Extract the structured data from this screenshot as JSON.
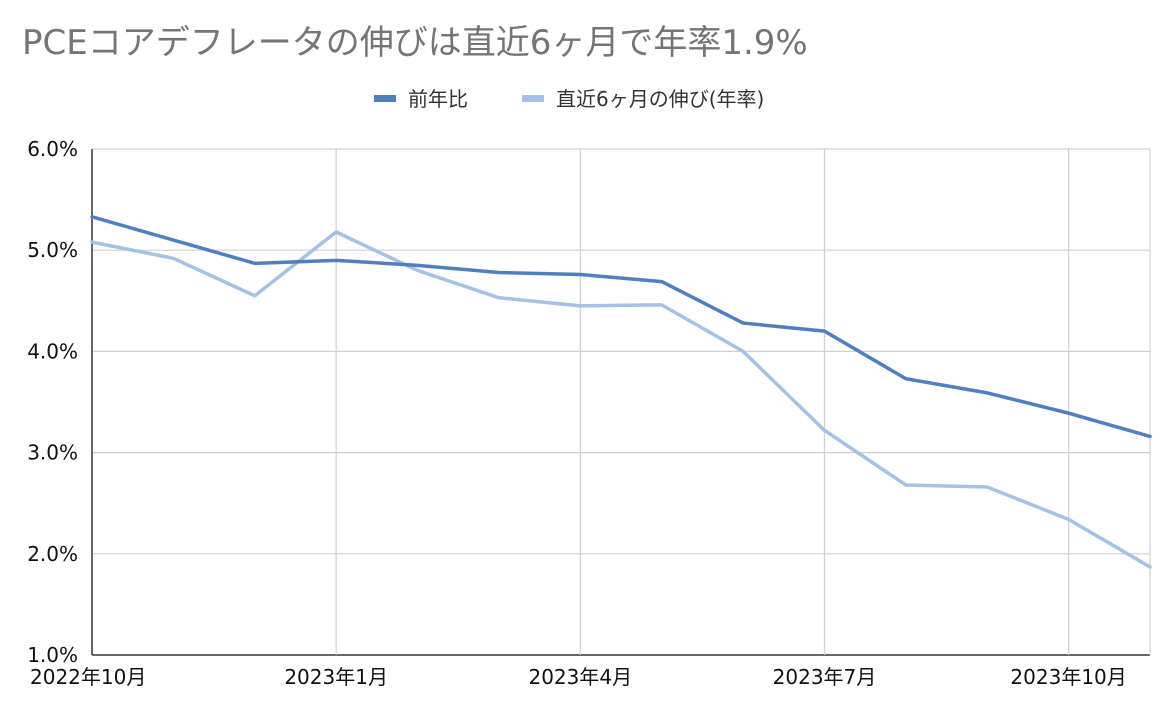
{
  "chart_data": {
    "type": "line",
    "title": "PCEコアデフレータの伸びは直近6ヶ月で年率1.9%",
    "xlabel": "",
    "ylabel": "",
    "ylim": [
      0.01,
      0.06
    ],
    "yticks": [
      "1.0%",
      "2.0%",
      "3.0%",
      "4.0%",
      "5.0%",
      "6.0%"
    ],
    "grid": true,
    "legend_position": "top",
    "categories": [
      "2022年10月",
      "2022年11月",
      "2022年12月",
      "2023年1月",
      "2023年2月",
      "2023年3月",
      "2023年4月",
      "2023年5月",
      "2023年6月",
      "2023年7月",
      "2023年8月",
      "2023年9月",
      "2023年10月",
      "2023年11月"
    ],
    "x_tick_labels": [
      "2022年10月",
      "",
      "",
      "2023年1月",
      "",
      "",
      "2023年4月",
      "",
      "",
      "2023年7月",
      "",
      "",
      "2023年10月",
      ""
    ],
    "series": [
      {
        "name": "前年比",
        "color": "#4f7fbf",
        "values": [
          0.0533,
          0.051,
          0.0487,
          0.049,
          0.0485,
          0.0478,
          0.0476,
          0.0469,
          0.0428,
          0.042,
          0.0373,
          0.0359,
          0.0339,
          0.0316
        ]
      },
      {
        "name": "直近6ヶ月の伸び(年率)",
        "color": "#a4c2e4",
        "values": [
          0.0508,
          0.0492,
          0.0455,
          0.0518,
          0.048,
          0.0453,
          0.0445,
          0.0446,
          0.04,
          0.0322,
          0.0268,
          0.0266,
          0.0234,
          0.0187
        ]
      }
    ]
  }
}
